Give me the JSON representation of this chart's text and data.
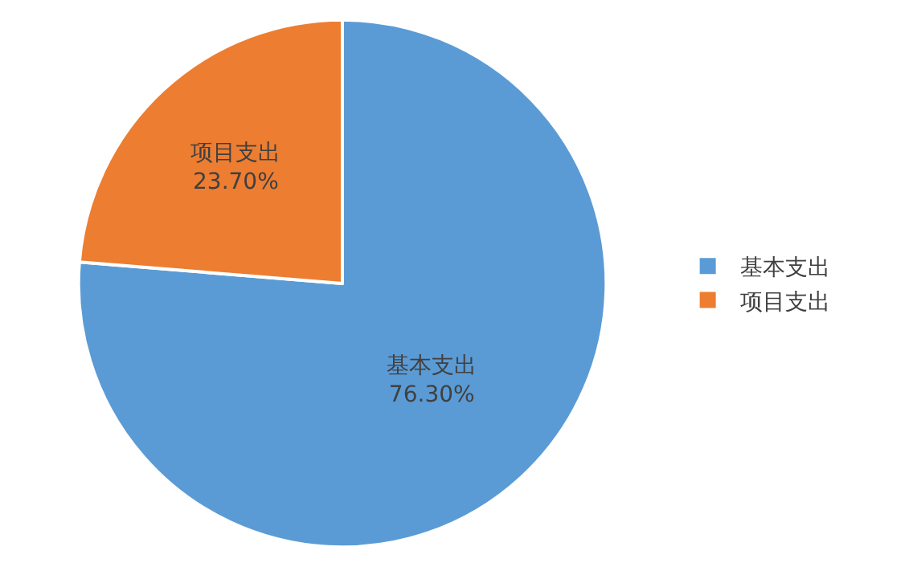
{
  "chart_data": {
    "type": "pie",
    "categories": [
      "基本支出",
      "项目支出"
    ],
    "values": [
      76.3,
      23.7
    ],
    "colors": [
      "#5b9bd5",
      "#ed7d31"
    ],
    "value_labels": [
      "76.30%",
      "23.70%"
    ],
    "legend": "right"
  }
}
